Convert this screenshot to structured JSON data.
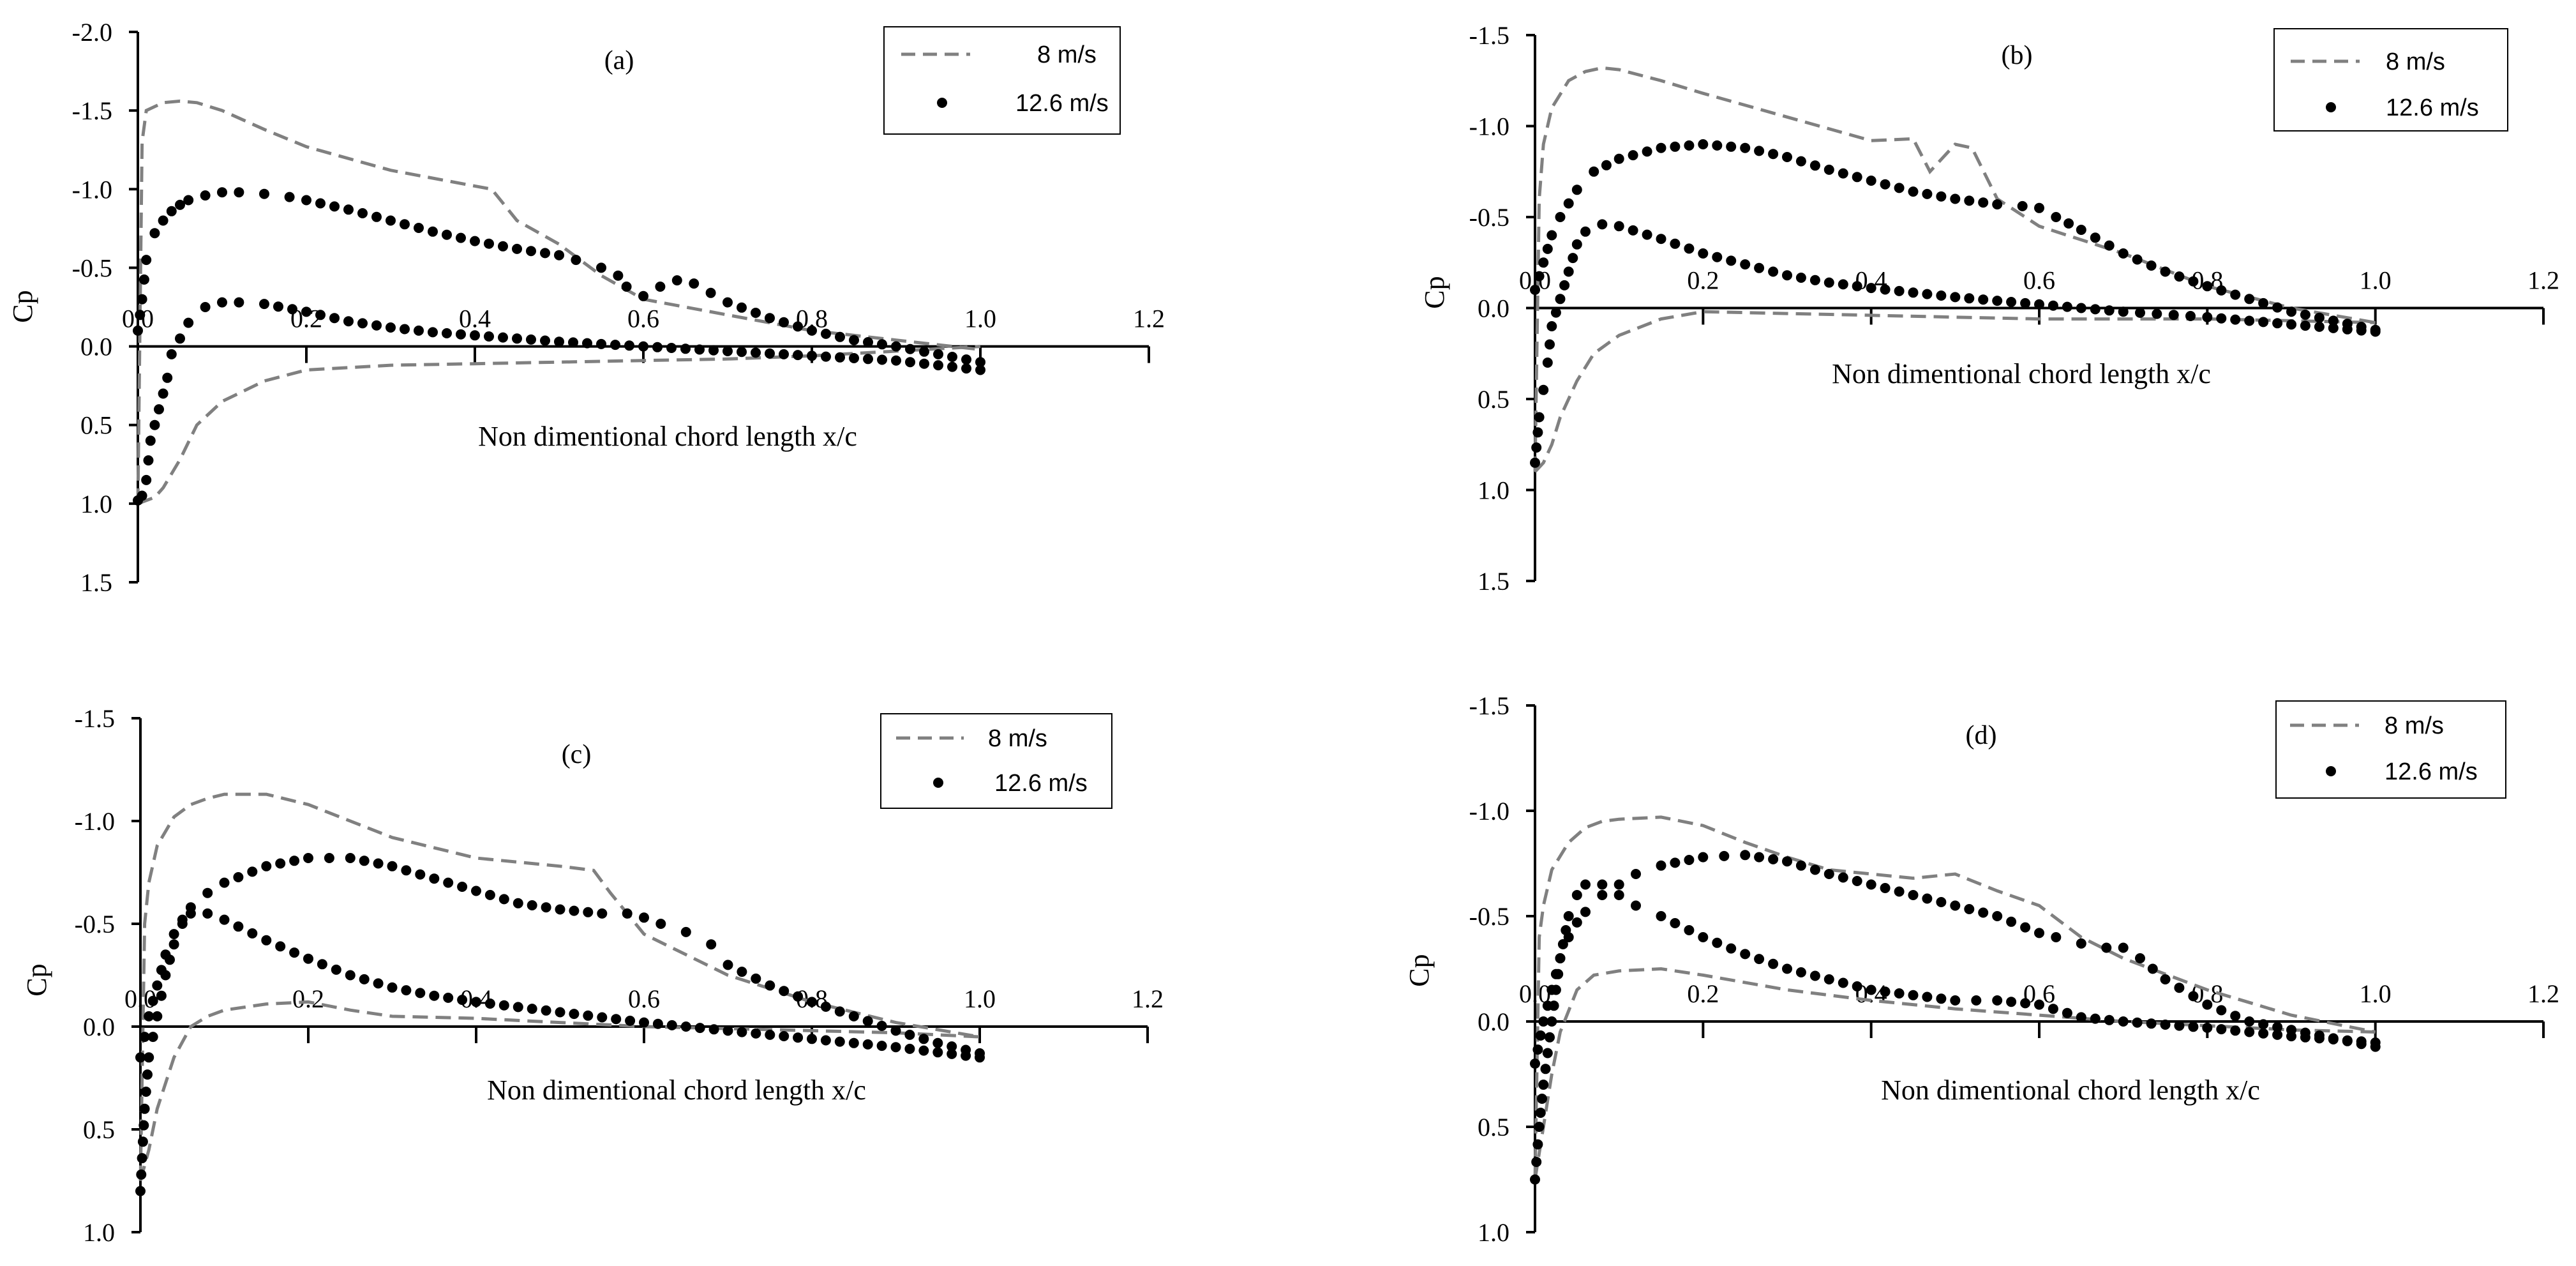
{
  "colors": {
    "dashed": "#808080",
    "dots": "#000000",
    "axis": "#000000"
  },
  "chart_data": [
    {
      "type": "line",
      "panel_label": "(a)",
      "xlabel": "Non dimentional chord length x/c",
      "ylabel": "Cp",
      "xlim": [
        0,
        1.2
      ],
      "ylim": [
        -2.0,
        1.5
      ],
      "y_inverted": true,
      "x_ticks": [
        "0.0",
        "0.2",
        "0.4",
        "0.6",
        "0.8",
        "1.0",
        "1.2"
      ],
      "y_ticks": [
        "-2.0",
        "-1.5",
        "-1.0",
        "-0.5",
        "0.0",
        "0.5",
        "1.0",
        "1.5"
      ],
      "legend": [
        "8 m/s",
        "12.6 m/s"
      ],
      "series": [
        {
          "name": "8 m/s",
          "style": "dashed",
          "x": [
            0.0,
            0.005,
            0.01,
            0.03,
            0.05,
            0.07,
            0.1,
            0.15,
            0.2,
            0.3,
            0.4,
            0.42,
            0.45,
            0.5,
            0.55,
            0.6,
            0.7,
            0.8,
            0.9,
            1.0
          ],
          "y": [
            1.0,
            -1.3,
            -1.5,
            -1.55,
            -1.56,
            -1.55,
            -1.5,
            -1.38,
            -1.27,
            -1.12,
            -1.02,
            -1.0,
            -0.8,
            -0.65,
            -0.45,
            -0.3,
            -0.2,
            -0.1,
            -0.04,
            0.02
          ]
        },
        {
          "name": "8 m/s lower",
          "style": "dashed",
          "x": [
            0.0,
            0.01,
            0.02,
            0.03,
            0.05,
            0.07,
            0.1,
            0.15,
            0.2,
            0.3,
            0.4,
            0.5,
            0.6,
            0.7,
            0.8,
            0.9,
            1.0
          ],
          "y": [
            1.0,
            0.98,
            0.96,
            0.9,
            0.72,
            0.5,
            0.35,
            0.22,
            0.15,
            0.12,
            0.11,
            0.1,
            0.09,
            0.08,
            0.06,
            0.03,
            0.0
          ]
        },
        {
          "name": "12.6 m/s",
          "style": "dots",
          "x": [
            0.0,
            0.005,
            0.01,
            0.02,
            0.03,
            0.04,
            0.05,
            0.06,
            0.08,
            0.1,
            0.12,
            0.15,
            0.18,
            0.2,
            0.25,
            0.3,
            0.35,
            0.4,
            0.45,
            0.5,
            0.52,
            0.55,
            0.57,
            0.58,
            0.6,
            0.62,
            0.64,
            0.66,
            0.68,
            0.7,
            0.75,
            0.8,
            0.85,
            0.9,
            0.95,
            1.0
          ],
          "y": [
            -0.1,
            -0.3,
            -0.55,
            -0.72,
            -0.8,
            -0.86,
            -0.9,
            -0.93,
            -0.96,
            -0.98,
            -0.98,
            -0.97,
            -0.95,
            -0.93,
            -0.87,
            -0.8,
            -0.73,
            -0.67,
            -0.62,
            -0.58,
            -0.55,
            -0.5,
            -0.45,
            -0.38,
            -0.32,
            -0.38,
            -0.42,
            -0.4,
            -0.34,
            -0.28,
            -0.18,
            -0.1,
            -0.04,
            0.0,
            0.05,
            0.1
          ]
        },
        {
          "name": "12.6 m/s lower",
          "style": "dots",
          "x": [
            0.0,
            0.005,
            0.01,
            0.015,
            0.02,
            0.025,
            0.03,
            0.035,
            0.04,
            0.05,
            0.06,
            0.08,
            0.1,
            0.12,
            0.15,
            0.2,
            0.25,
            0.3,
            0.35,
            0.4,
            0.5,
            0.6,
            0.7,
            0.8,
            0.9,
            0.95,
            1.0
          ],
          "y": [
            0.98,
            0.95,
            0.85,
            0.6,
            0.5,
            0.4,
            0.3,
            0.2,
            0.05,
            -0.05,
            -0.15,
            -0.25,
            -0.28,
            -0.28,
            -0.27,
            -0.22,
            -0.16,
            -0.12,
            -0.09,
            -0.07,
            -0.03,
            0.0,
            0.03,
            0.06,
            0.09,
            0.12,
            0.15
          ]
        }
      ]
    },
    {
      "type": "line",
      "panel_label": "(b)",
      "xlabel": "Non dimentional chord length x/c",
      "ylabel": "Cp",
      "xlim": [
        0,
        1.2
      ],
      "ylim": [
        -1.5,
        1.5
      ],
      "y_inverted": true,
      "x_ticks": [
        "0.0",
        "0.2",
        "0.4",
        "0.6",
        "0.8",
        "1.0",
        "1.2"
      ],
      "y_ticks": [
        "-1.5",
        "-1.0",
        "-0.5",
        "0.0",
        "0.5",
        "1.0",
        "1.5"
      ],
      "legend": [
        "8 m/s",
        "12.6 m/s"
      ],
      "series": [
        {
          "name": "8 m/s",
          "style": "dashed",
          "x": [
            0.0,
            0.005,
            0.01,
            0.02,
            0.04,
            0.06,
            0.08,
            0.1,
            0.15,
            0.2,
            0.3,
            0.4,
            0.45,
            0.47,
            0.5,
            0.52,
            0.55,
            0.6,
            0.7,
            0.8,
            0.9,
            1.0
          ],
          "y": [
            0.9,
            -0.6,
            -0.9,
            -1.1,
            -1.25,
            -1.3,
            -1.32,
            -1.31,
            -1.25,
            -1.18,
            -1.05,
            -0.92,
            -0.93,
            -0.75,
            -0.9,
            -0.88,
            -0.6,
            -0.45,
            -0.3,
            -0.12,
            0.0,
            0.08
          ]
        },
        {
          "name": "8 m/s lower",
          "style": "dashed",
          "x": [
            0.0,
            0.01,
            0.02,
            0.03,
            0.05,
            0.07,
            0.1,
            0.15,
            0.2,
            0.3,
            0.4,
            0.5,
            0.6,
            0.7,
            0.8,
            0.9,
            1.0
          ],
          "y": [
            0.9,
            0.85,
            0.75,
            0.6,
            0.4,
            0.25,
            0.15,
            0.06,
            0.02,
            0.03,
            0.04,
            0.05,
            0.06,
            0.06,
            0.06,
            0.07,
            0.08
          ]
        },
        {
          "name": "12.6 m/s",
          "style": "dots",
          "x": [
            0.0,
            0.01,
            0.02,
            0.03,
            0.05,
            0.07,
            0.1,
            0.15,
            0.2,
            0.25,
            0.3,
            0.35,
            0.4,
            0.45,
            0.5,
            0.55,
            0.58,
            0.6,
            0.62,
            0.65,
            0.7,
            0.75,
            0.8,
            0.85,
            0.9,
            0.95,
            1.0
          ],
          "y": [
            -0.1,
            -0.25,
            -0.4,
            -0.5,
            -0.65,
            -0.75,
            -0.82,
            -0.88,
            -0.9,
            -0.88,
            -0.83,
            -0.76,
            -0.7,
            -0.64,
            -0.6,
            -0.57,
            -0.56,
            -0.55,
            -0.5,
            -0.43,
            -0.3,
            -0.2,
            -0.12,
            -0.05,
            0.02,
            0.07,
            0.12
          ]
        },
        {
          "name": "12.6 m/s lower",
          "style": "dots",
          "x": [
            0.0,
            0.005,
            0.01,
            0.015,
            0.02,
            0.03,
            0.04,
            0.05,
            0.06,
            0.08,
            0.1,
            0.15,
            0.2,
            0.25,
            0.3,
            0.35,
            0.4,
            0.5,
            0.6,
            0.7,
            0.8,
            0.9,
            1.0
          ],
          "y": [
            0.85,
            0.6,
            0.45,
            0.3,
            0.1,
            -0.05,
            -0.2,
            -0.35,
            -0.42,
            -0.46,
            -0.45,
            -0.38,
            -0.3,
            -0.24,
            -0.18,
            -0.14,
            -0.11,
            -0.06,
            -0.02,
            0.02,
            0.05,
            0.09,
            0.13
          ]
        }
      ]
    },
    {
      "type": "line",
      "panel_label": "(c)",
      "xlabel": "Non dimentional chord length x/c",
      "ylabel": "Cp",
      "xlim": [
        0,
        1.2
      ],
      "ylim": [
        -1.5,
        1.0
      ],
      "y_inverted": true,
      "x_ticks": [
        "0.0",
        "0.2",
        "0.4",
        "0.6",
        "0.8",
        "1.0",
        "1.2"
      ],
      "y_ticks": [
        "-1.5",
        "-1.0",
        "-0.5",
        "0.0",
        "0.5",
        "1.0"
      ],
      "legend": [
        "8 m/s",
        "12.6 m/s"
      ],
      "series": [
        {
          "name": "8 m/s",
          "style": "dashed",
          "x": [
            0.0,
            0.005,
            0.01,
            0.02,
            0.04,
            0.06,
            0.08,
            0.1,
            0.15,
            0.2,
            0.3,
            0.4,
            0.5,
            0.54,
            0.56,
            0.6,
            0.7,
            0.8,
            0.9,
            1.0
          ],
          "y": [
            0.75,
            -0.5,
            -0.7,
            -0.88,
            -1.02,
            -1.08,
            -1.11,
            -1.13,
            -1.13,
            -1.08,
            -0.92,
            -0.82,
            -0.78,
            -0.76,
            -0.65,
            -0.45,
            -0.25,
            -0.12,
            -0.02,
            0.05
          ]
        },
        {
          "name": "8 m/s lower",
          "style": "dashed",
          "x": [
            0.0,
            0.01,
            0.02,
            0.04,
            0.06,
            0.08,
            0.1,
            0.15,
            0.2,
            0.25,
            0.3,
            0.4,
            0.5,
            0.6,
            0.7,
            0.8,
            0.9,
            1.0
          ],
          "y": [
            0.75,
            0.6,
            0.4,
            0.15,
            0.0,
            -0.05,
            -0.08,
            -0.11,
            -0.12,
            -0.08,
            -0.05,
            -0.04,
            -0.02,
            0.0,
            0.01,
            0.02,
            0.03,
            0.05
          ]
        },
        {
          "name": "12.6 m/s",
          "style": "dots",
          "x": [
            0.0,
            0.01,
            0.02,
            0.03,
            0.04,
            0.05,
            0.06,
            0.08,
            0.1,
            0.15,
            0.2,
            0.25,
            0.3,
            0.35,
            0.4,
            0.45,
            0.5,
            0.55,
            0.58,
            0.6,
            0.62,
            0.65,
            0.68,
            0.7,
            0.75,
            0.8,
            0.85,
            0.9,
            0.95,
            1.0
          ],
          "y": [
            0.15,
            -0.05,
            -0.2,
            -0.35,
            -0.45,
            -0.52,
            -0.58,
            -0.65,
            -0.7,
            -0.78,
            -0.82,
            -0.82,
            -0.78,
            -0.72,
            -0.66,
            -0.6,
            -0.57,
            -0.55,
            -0.55,
            -0.53,
            -0.5,
            -0.46,
            -0.4,
            -0.3,
            -0.2,
            -0.12,
            -0.05,
            0.02,
            0.08,
            0.13
          ]
        },
        {
          "name": "12.6 m/s lower",
          "style": "dots",
          "x": [
            0.0,
            0.005,
            0.01,
            0.015,
            0.02,
            0.03,
            0.04,
            0.05,
            0.06,
            0.08,
            0.1,
            0.15,
            0.2,
            0.25,
            0.3,
            0.35,
            0.4,
            0.5,
            0.6,
            0.7,
            0.8,
            0.9,
            1.0
          ],
          "y": [
            0.8,
            0.4,
            0.15,
            0.05,
            -0.05,
            -0.25,
            -0.4,
            -0.5,
            -0.55,
            -0.55,
            -0.52,
            -0.42,
            -0.33,
            -0.25,
            -0.19,
            -0.15,
            -0.12,
            -0.07,
            -0.02,
            0.02,
            0.06,
            0.1,
            0.15
          ]
        }
      ]
    },
    {
      "type": "line",
      "panel_label": "(d)",
      "xlabel": "Non dimentional chord length x/c",
      "ylabel": "Cp",
      "xlim": [
        0,
        1.2
      ],
      "ylim": [
        -1.5,
        1.0
      ],
      "y_inverted": true,
      "x_ticks": [
        "0.0",
        "0.2",
        "0.4",
        "0.6",
        "0.8",
        "1.0",
        "1.2"
      ],
      "y_ticks": [
        "-1.5",
        "-1.0",
        "-0.5",
        "0.0",
        "0.5",
        "1.0"
      ],
      "legend": [
        "8 m/s",
        "12.6 m/s"
      ],
      "series": [
        {
          "name": "8 m/s",
          "style": "dashed",
          "x": [
            0.0,
            0.005,
            0.01,
            0.02,
            0.04,
            0.06,
            0.08,
            0.1,
            0.15,
            0.2,
            0.25,
            0.3,
            0.35,
            0.4,
            0.45,
            0.5,
            0.55,
            0.6,
            0.65,
            0.7,
            0.8,
            0.9,
            1.0
          ],
          "y": [
            0.75,
            -0.4,
            -0.55,
            -0.72,
            -0.85,
            -0.92,
            -0.95,
            -0.96,
            -0.97,
            -0.93,
            -0.85,
            -0.78,
            -0.72,
            -0.7,
            -0.68,
            -0.7,
            -0.62,
            -0.55,
            -0.4,
            -0.3,
            -0.15,
            -0.03,
            0.05
          ]
        },
        {
          "name": "8 m/s lower",
          "style": "dashed",
          "x": [
            0.0,
            0.01,
            0.02,
            0.03,
            0.05,
            0.07,
            0.1,
            0.15,
            0.2,
            0.3,
            0.4,
            0.5,
            0.6,
            0.7,
            0.8,
            0.9,
            1.0
          ],
          "y": [
            0.75,
            0.5,
            0.25,
            0.05,
            -0.15,
            -0.22,
            -0.24,
            -0.25,
            -0.22,
            -0.15,
            -0.1,
            -0.06,
            -0.03,
            0.0,
            0.02,
            0.04,
            0.05
          ]
        },
        {
          "name": "12.6 m/s",
          "style": "dots",
          "x": [
            0.0,
            0.01,
            0.02,
            0.03,
            0.04,
            0.05,
            0.06,
            0.08,
            0.1,
            0.12,
            0.15,
            0.2,
            0.25,
            0.3,
            0.35,
            0.4,
            0.45,
            0.5,
            0.55,
            0.6,
            0.62,
            0.65,
            0.68,
            0.7,
            0.72,
            0.75,
            0.8,
            0.85,
            0.9,
            0.95,
            1.0
          ],
          "y": [
            0.2,
            0.0,
            -0.15,
            -0.3,
            -0.4,
            -0.47,
            -0.52,
            -0.6,
            -0.65,
            -0.7,
            -0.74,
            -0.78,
            -0.79,
            -0.76,
            -0.7,
            -0.65,
            -0.6,
            -0.55,
            -0.5,
            -0.42,
            -0.4,
            -0.37,
            -0.35,
            -0.35,
            -0.3,
            -0.2,
            -0.08,
            0.0,
            0.04,
            0.08,
            0.12
          ]
        },
        {
          "name": "12.6 m/s lower",
          "style": "dots",
          "x": [
            0.0,
            0.005,
            0.01,
            0.015,
            0.02,
            0.03,
            0.04,
            0.05,
            0.06,
            0.08,
            0.1,
            0.12,
            0.15,
            0.2,
            0.25,
            0.3,
            0.35,
            0.4,
            0.5,
            0.55,
            0.6,
            0.65,
            0.7,
            0.8,
            0.9,
            1.0
          ],
          "y": [
            0.75,
            0.5,
            0.3,
            0.15,
            0.0,
            -0.3,
            -0.5,
            -0.6,
            -0.65,
            -0.65,
            -0.6,
            -0.55,
            -0.5,
            -0.4,
            -0.32,
            -0.25,
            -0.2,
            -0.15,
            -0.1,
            -0.1,
            -0.08,
            -0.02,
            0.0,
            0.03,
            0.07,
            0.1
          ]
        }
      ]
    }
  ]
}
